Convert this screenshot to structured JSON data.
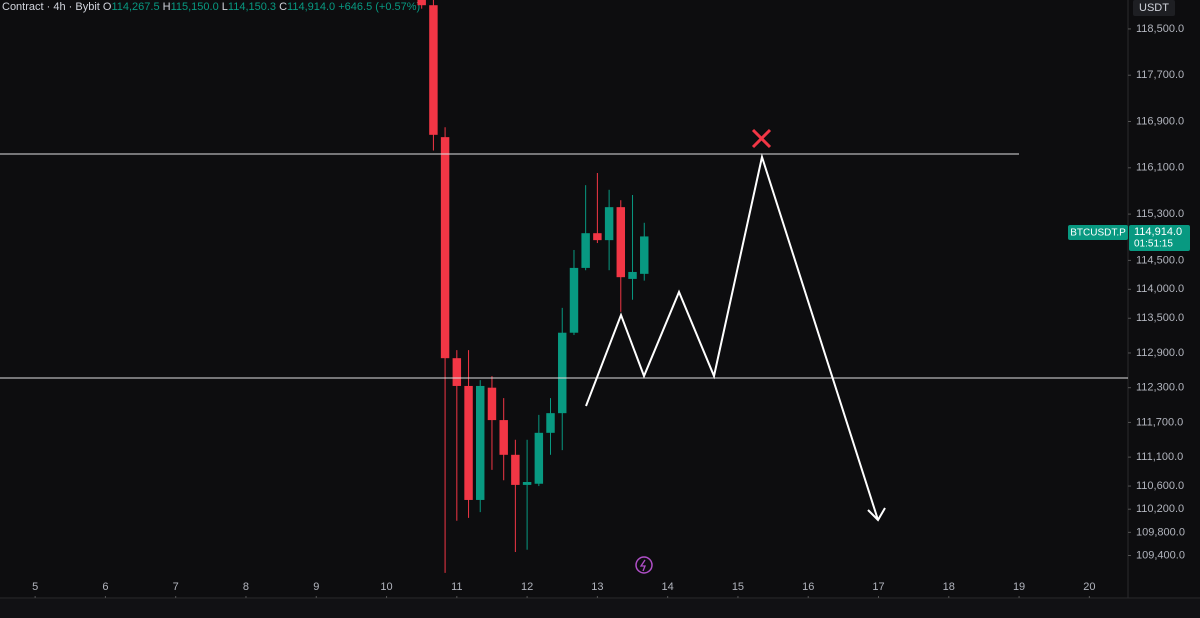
{
  "header": {
    "symbol": "Contract · 4h · Bybit",
    "ohlc": [
      {
        "key": "O",
        "text": "114,267.5"
      },
      {
        "key": "H",
        "text": "115,150.0"
      },
      {
        "key": "L",
        "text": "114,150.3"
      },
      {
        "key": "C",
        "text": "114,914.0"
      }
    ],
    "change": "+646.5 (+0.57%)"
  },
  "currency": "USDT",
  "price_tag": {
    "symbol": "BTCUSDT.P",
    "price": "114,914.0",
    "countdown": "01:51:15"
  },
  "chart_data": {
    "type": "candlestick",
    "x": [
      10.5,
      10.667,
      10.833,
      11,
      11.167,
      11.333,
      11.5,
      11.667,
      11.833,
      12,
      12.167,
      12.333,
      12.5,
      12.667,
      12.833,
      13,
      13.167,
      13.333,
      13.5,
      13.667
    ],
    "open": [
      119000,
      118910,
      116630,
      112810,
      112330,
      110360,
      112300,
      111740,
      111140,
      110620,
      110640,
      111520,
      111860,
      113250,
      114370,
      114970,
      114850,
      115420,
      114180,
      114267.5
    ],
    "high": [
      119000,
      119000,
      116800,
      112950,
      112950,
      112430,
      112500,
      112120,
      111400,
      111400,
      111830,
      112120,
      113680,
      114680,
      115800,
      116010,
      115720,
      115540,
      115630,
      115150
    ],
    "low": [
      118850,
      116400,
      109100,
      110000,
      110050,
      110150,
      110880,
      110700,
      109460,
      109500,
      110600,
      111140,
      111220,
      113210,
      114330,
      114800,
      114330,
      113610,
      113820,
      114150.3
    ],
    "close": [
      118910,
      116670,
      112810,
      112330,
      110360,
      112330,
      111740,
      111140,
      110620,
      110670,
      111520,
      111860,
      113250,
      114370,
      114970,
      114850,
      115420,
      114210,
      114300,
      114914
    ],
    "up_color": "#089981",
    "down_color": "#f23645",
    "xlim": [
      4.5,
      20.55
    ],
    "xticks": [
      5,
      6,
      7,
      8,
      9,
      10,
      11,
      12,
      13,
      14,
      15,
      16,
      17,
      18,
      19,
      20
    ],
    "ylim": [
      108700,
      119000
    ],
    "yticks": [
      {
        "value": 118500,
        "label": "118,500.0"
      },
      {
        "value": 117700,
        "label": "117,700.0"
      },
      {
        "value": 116900,
        "label": "116,900.0"
      },
      {
        "value": 116100,
        "label": "116,100.0"
      },
      {
        "value": 115300,
        "label": "115,300.0"
      },
      {
        "value": 114500,
        "label": "114,500.0"
      },
      {
        "value": 114000,
        "label": "114,000.0"
      },
      {
        "value": 113500,
        "label": "113,500.0"
      },
      {
        "value": 112900,
        "label": "112,900.0"
      },
      {
        "value": 112300,
        "label": "112,300.0"
      },
      {
        "value": 111700,
        "label": "111,700.0"
      },
      {
        "value": 111100,
        "label": "111,100.0"
      },
      {
        "value": 110600,
        "label": "110,600.0"
      },
      {
        "value": 110200,
        "label": "110,200.0"
      },
      {
        "value": 109800,
        "label": "109,800.0"
      },
      {
        "value": 109400,
        "label": "109,400.0"
      }
    ]
  }
}
